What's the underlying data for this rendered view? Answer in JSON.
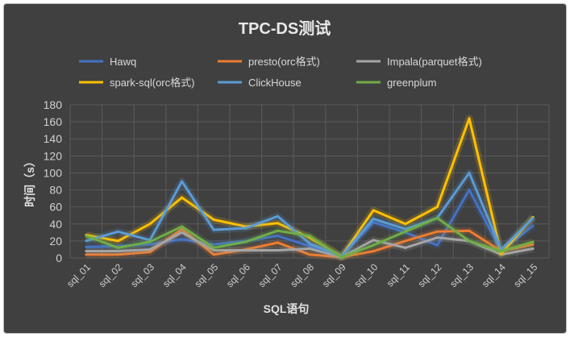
{
  "chart_data": {
    "type": "line",
    "title": "TPC-DS测试",
    "xlabel": "SQL语句",
    "ylabel": "时间（s）",
    "ylim": [
      0,
      180
    ],
    "yticks": [
      0,
      20,
      40,
      60,
      80,
      100,
      120,
      140,
      160,
      180
    ],
    "grid": true,
    "legend_position": "top",
    "categories": [
      "sql_01",
      "sql_02",
      "sql_03",
      "sql_04",
      "sql_05",
      "sql_06",
      "sql_07",
      "sql_08",
      "sql_09",
      "sql_10",
      "sql_11",
      "sql_12",
      "sql_13",
      "sql_14",
      "sql_15"
    ],
    "series": [
      {
        "name": "Hawq",
        "color": "#4472c4",
        "values": [
          13,
          14,
          16,
          22,
          16,
          20,
          26,
          14,
          2,
          42,
          30,
          15,
          80,
          8,
          38
        ]
      },
      {
        "name": "presto(orc格式)",
        "color": "#ed7d31",
        "values": [
          4,
          4,
          7,
          34,
          4,
          10,
          18,
          4,
          1,
          8,
          20,
          31,
          32,
          8,
          16
        ]
      },
      {
        "name": "Impala(parquet格式)",
        "color": "#a5a5a5",
        "values": [
          8,
          8,
          10,
          30,
          9,
          9,
          9,
          11,
          1,
          21,
          12,
          24,
          20,
          4,
          11
        ]
      },
      {
        "name": "spark-sql(orc格式)",
        "color": "#ffc000",
        "values": [
          27,
          20,
          40,
          71,
          45,
          37,
          41,
          24,
          2,
          56,
          40,
          60,
          164,
          5,
          48
        ]
      },
      {
        "name": "ClickHouse",
        "color": "#5b9bd5",
        "values": [
          20,
          31,
          21,
          90,
          33,
          35,
          49,
          17,
          2,
          46,
          34,
          47,
          100,
          10,
          47
        ]
      },
      {
        "name": "greenplum",
        "color": "#70ad47",
        "values": [
          26,
          12,
          19,
          37,
          12,
          19,
          32,
          26,
          1,
          15,
          31,
          47,
          20,
          8,
          19
        ]
      }
    ]
  }
}
